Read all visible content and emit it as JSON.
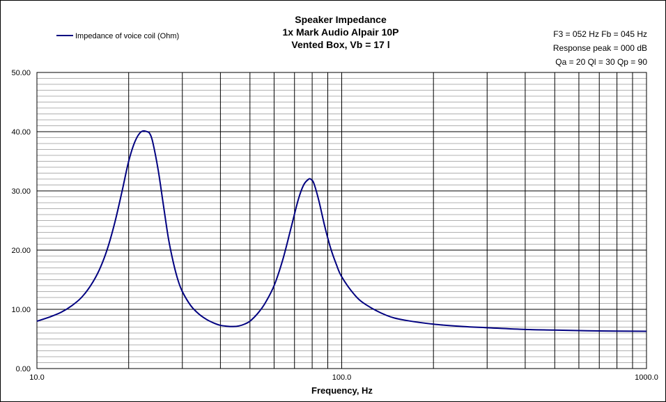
{
  "chart_data": {
    "type": "line",
    "title_lines": [
      "Speaker Impedance",
      "1x Mark Audio Alpair 10P",
      "Vented Box, Vb = 17 l"
    ],
    "info_lines": [
      "F3 = 052 Hz  Fb = 045 Hz",
      "Response  peak = 000 dB",
      "Qa = 20  Ql = 30  Qp = 90"
    ],
    "xlabel": "Frequency, Hz",
    "ylabel": "",
    "x_scale": "log",
    "xlim": [
      10,
      1000
    ],
    "ylim": [
      0,
      50
    ],
    "x_ticks": [
      10,
      100,
      1000
    ],
    "x_tick_labels": [
      "10.0",
      "100.0",
      "1000.0"
    ],
    "y_ticks": [
      0,
      10,
      20,
      30,
      40,
      50
    ],
    "y_tick_labels": [
      "0.00",
      "10.00",
      "20.00",
      "30.00",
      "40.00",
      "50.00"
    ],
    "grid": true,
    "legend_position": "top-left",
    "series": [
      {
        "name": "Impedance of voice coil (Ohm)",
        "color": "#000080",
        "x": [
          10,
          11,
          12,
          13,
          14,
          15,
          16,
          17,
          18,
          19,
          20,
          21,
          22,
          23,
          23.5,
          24,
          25,
          26,
          27,
          28,
          29,
          30,
          32,
          34,
          36,
          38,
          40,
          42,
          44,
          46,
          48,
          50,
          53,
          56,
          60,
          64,
          68,
          72,
          75,
          78,
          79.5,
          81,
          84,
          88,
          92,
          96,
          100,
          110,
          120,
          140,
          160,
          200,
          250,
          300,
          400,
          500,
          700,
          1000
        ],
        "values": [
          8.0,
          8.7,
          9.5,
          10.6,
          12.0,
          14.0,
          16.6,
          20.1,
          24.6,
          29.8,
          35.0,
          38.4,
          40.0,
          40.0,
          39.6,
          38.2,
          33.5,
          27.6,
          22.0,
          18.0,
          15.0,
          13.0,
          10.6,
          9.2,
          8.3,
          7.7,
          7.3,
          7.15,
          7.1,
          7.2,
          7.5,
          8.0,
          9.3,
          11.0,
          14.0,
          18.3,
          23.5,
          28.5,
          31.0,
          32.0,
          31.9,
          31.3,
          28.5,
          24.0,
          20.3,
          17.6,
          15.5,
          12.5,
          10.8,
          9.0,
          8.2,
          7.5,
          7.1,
          6.9,
          6.6,
          6.5,
          6.35,
          6.3
        ]
      }
    ]
  }
}
